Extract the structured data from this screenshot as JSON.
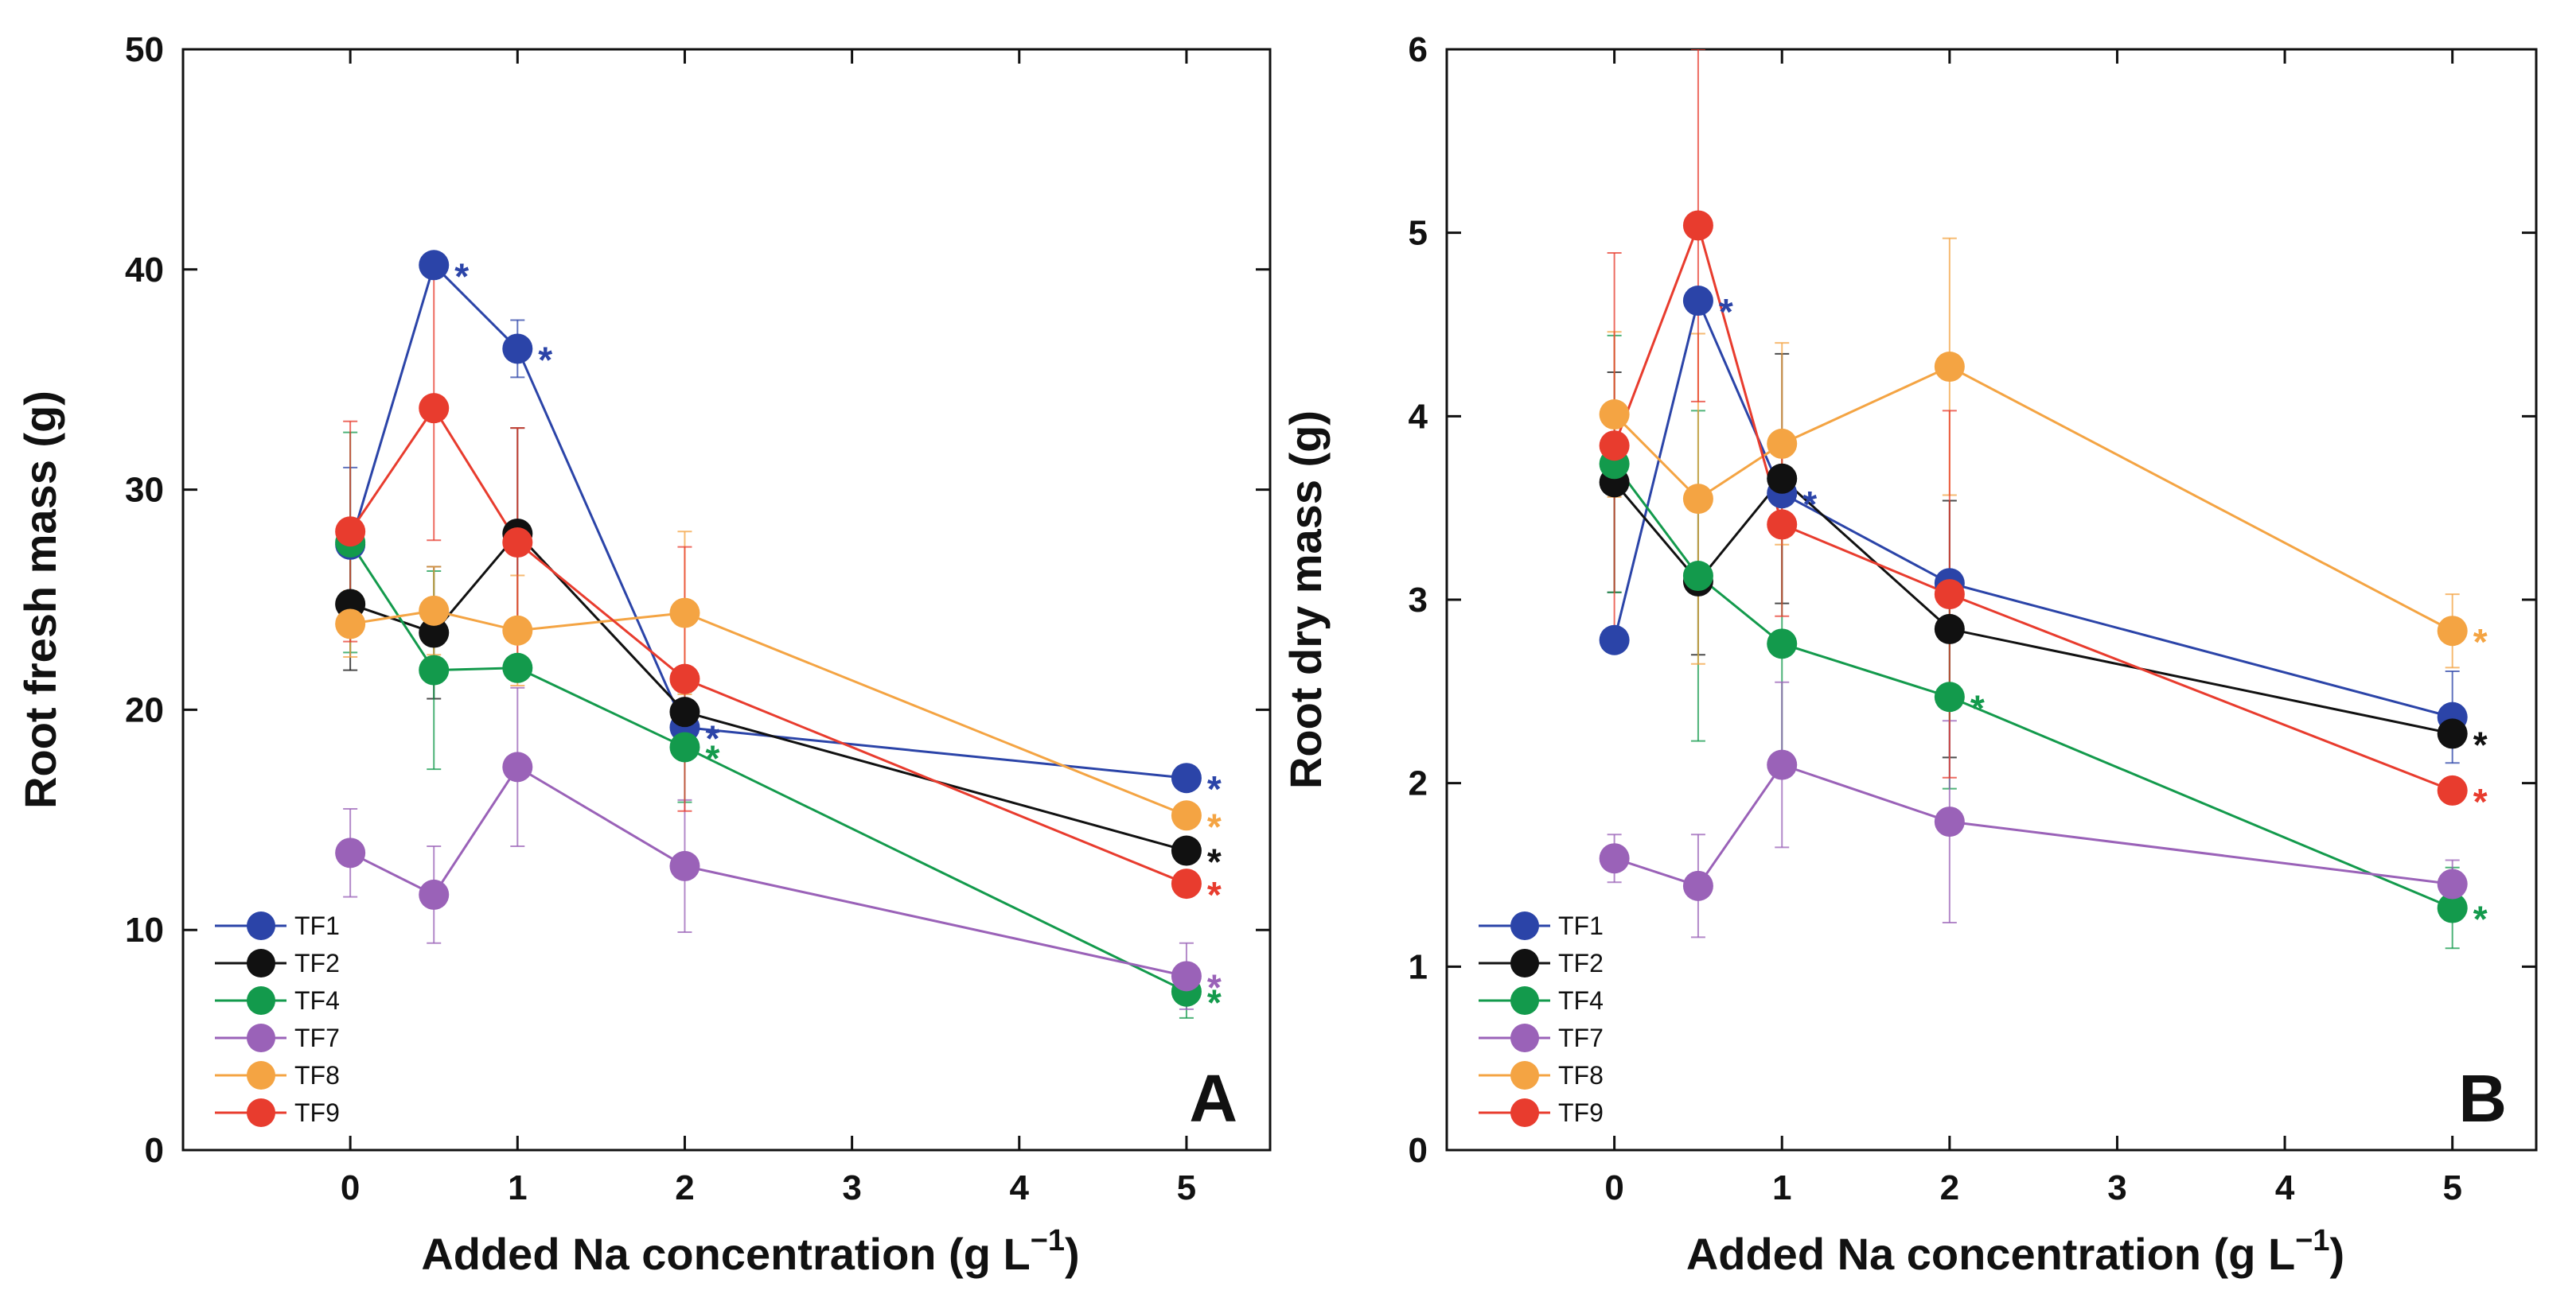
{
  "colors": {
    "TF1": "#2b44a8",
    "TF2": "#111111",
    "TF4": "#139a4c",
    "TF7": "#9a62b8",
    "TF8": "#f4a443",
    "TF9": "#e83c2e"
  },
  "chart_data": [
    {
      "type": "line",
      "panel": "A",
      "xlabel": "Added Na concentration (g L",
      "xlabel_sup": "−1",
      "xlabel_close": ")",
      "ylabel": "Root fresh mass (g)",
      "xlim": [
        -1,
        5.5
      ],
      "ylim": [
        0,
        50
      ],
      "xticks": [
        0,
        1,
        2,
        3,
        4,
        5
      ],
      "yticks": [
        0,
        10,
        20,
        30,
        40,
        50
      ],
      "legend_position": "bottom-left",
      "x": [
        0,
        0.5,
        1,
        2,
        5
      ],
      "series": [
        {
          "name": "TF1",
          "values": [
            27.5,
            40.2,
            36.4,
            19.2,
            16.9
          ],
          "err": [
            3.5,
            0,
            1.3,
            0,
            0
          ],
          "stars": [
            false,
            true,
            true,
            true,
            true
          ]
        },
        {
          "name": "TF2",
          "values": [
            24.8,
            23.5,
            28.0,
            19.9,
            13.6
          ],
          "err": [
            3.0,
            3.0,
            4.8,
            0,
            0
          ],
          "stars": [
            false,
            false,
            false,
            false,
            true
          ]
        },
        {
          "name": "TF4",
          "values": [
            27.6,
            21.8,
            21.9,
            18.3,
            7.2
          ],
          "err": [
            5.0,
            4.5,
            0,
            2.5,
            1.2
          ],
          "stars": [
            false,
            false,
            false,
            true,
            true
          ]
        },
        {
          "name": "TF7",
          "values": [
            13.5,
            11.6,
            17.4,
            12.9,
            7.9
          ],
          "err": [
            2.0,
            2.2,
            3.6,
            3.0,
            1.5
          ],
          "stars": [
            false,
            false,
            false,
            false,
            true
          ]
        },
        {
          "name": "TF8",
          "values": [
            23.9,
            24.5,
            23.6,
            24.4,
            15.2
          ],
          "err": [
            1.5,
            2.0,
            2.5,
            3.7,
            0
          ],
          "stars": [
            false,
            false,
            false,
            false,
            true
          ]
        },
        {
          "name": "TF9",
          "values": [
            28.1,
            33.7,
            27.6,
            21.4,
            12.1
          ],
          "err": [
            5.0,
            6.0,
            5.2,
            6.0,
            0
          ],
          "stars": [
            false,
            false,
            false,
            false,
            true
          ]
        }
      ]
    },
    {
      "type": "line",
      "panel": "B",
      "xlabel": "Added Na concentration (g L",
      "xlabel_sup": "−1",
      "xlabel_close": ")",
      "ylabel": "Root dry mass (g)",
      "xlim": [
        -1,
        5.5
      ],
      "ylim": [
        0,
        6
      ],
      "xticks": [
        0,
        1,
        2,
        3,
        4,
        5
      ],
      "yticks": [
        0,
        1,
        2,
        3,
        4,
        5,
        6
      ],
      "legend_position": "bottom-left",
      "x": [
        0,
        0.5,
        1,
        2,
        5
      ],
      "series": [
        {
          "name": "TF1",
          "values": [
            2.78,
            4.63,
            3.58,
            3.09,
            2.36
          ],
          "err": [
            0,
            0,
            0,
            0,
            0.25
          ],
          "stars": [
            false,
            true,
            true,
            false,
            false
          ]
        },
        {
          "name": "TF2",
          "values": [
            3.64,
            3.1,
            3.66,
            2.84,
            2.27
          ],
          "err": [
            0.6,
            0.4,
            0.68,
            0.7,
            0
          ],
          "stars": [
            false,
            false,
            false,
            false,
            true
          ]
        },
        {
          "name": "TF4",
          "values": [
            3.74,
            3.13,
            2.76,
            2.47,
            1.32
          ],
          "err": [
            0.7,
            0.9,
            0.6,
            0.5,
            0.22
          ],
          "stars": [
            false,
            false,
            false,
            true,
            true
          ]
        },
        {
          "name": "TF7",
          "values": [
            1.59,
            1.44,
            2.1,
            1.79,
            1.45
          ],
          "err": [
            0.13,
            0.28,
            0.45,
            0.55,
            0.13
          ],
          "stars": [
            false,
            false,
            false,
            false,
            false
          ]
        },
        {
          "name": "TF8",
          "values": [
            4.01,
            3.55,
            3.85,
            4.27,
            2.83
          ],
          "err": [
            0.45,
            0.9,
            0.55,
            0.7,
            0.2
          ],
          "stars": [
            false,
            false,
            false,
            false,
            true
          ]
        },
        {
          "name": "TF9",
          "values": [
            3.84,
            5.04,
            3.41,
            3.03,
            1.96
          ],
          "err": [
            1.05,
            0.96,
            0.5,
            1.0,
            0
          ],
          "stars": [
            false,
            false,
            false,
            false,
            true
          ]
        }
      ]
    }
  ],
  "star_symbol": "*"
}
